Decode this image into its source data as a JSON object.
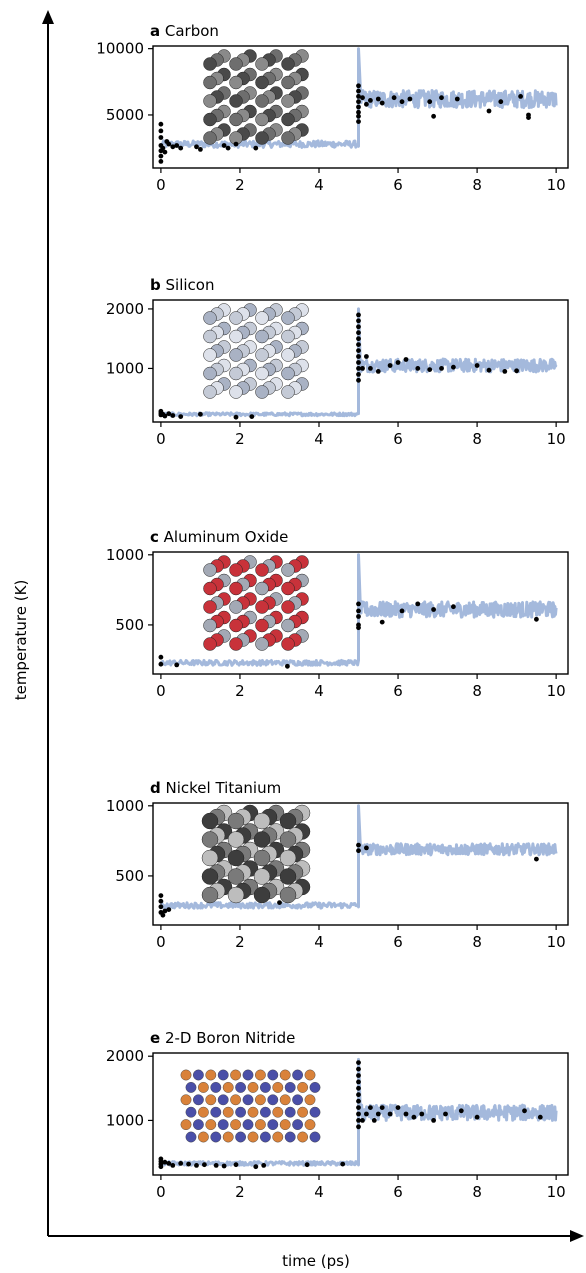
{
  "figure": {
    "xlabel": "time (ps)",
    "ylabel": "temperature (K)"
  },
  "colors": {
    "trace": "#a4b9dc",
    "points": "#000000",
    "axis": "#000000"
  },
  "chart_data": [
    {
      "type": "line",
      "panel_letter": "a",
      "title": "Carbon",
      "xlim": [
        -0.2,
        10.3
      ],
      "ylim": [
        1000,
        10200
      ],
      "xticks": [
        0,
        2,
        4,
        6,
        8,
        10
      ],
      "yticks": [
        5000,
        10000
      ],
      "spike": {
        "x": 5.0,
        "y": 10000
      },
      "series": [
        {
          "segment": "before",
          "x_range": [
            0,
            5
          ],
          "mean": 2800,
          "noise": 250
        },
        {
          "segment": "after",
          "x_range": [
            5.05,
            10
          ],
          "mean": 6200,
          "noise": 650
        }
      ],
      "points": [
        [
          0,
          4300
        ],
        [
          0,
          3800
        ],
        [
          0,
          3300
        ],
        [
          0,
          2700
        ],
        [
          0,
          2300
        ],
        [
          0,
          1900
        ],
        [
          0,
          1500
        ],
        [
          0.05,
          2500
        ],
        [
          0.1,
          2200
        ],
        [
          0.15,
          3000
        ],
        [
          0.2,
          2800
        ],
        [
          0.3,
          2600
        ],
        [
          0.4,
          2700
        ],
        [
          0.5,
          2500
        ],
        [
          0.9,
          2600
        ],
        [
          1,
          2400
        ],
        [
          1.6,
          2700
        ],
        [
          1.7,
          2500
        ],
        [
          1.9,
          2800
        ],
        [
          2.4,
          2500
        ],
        [
          5,
          7200
        ],
        [
          5,
          6800
        ],
        [
          5,
          6400
        ],
        [
          5,
          6000
        ],
        [
          5,
          5600
        ],
        [
          5,
          5200
        ],
        [
          5,
          4900
        ],
        [
          5,
          4500
        ],
        [
          5.1,
          6300
        ],
        [
          5.2,
          5800
        ],
        [
          5.3,
          6100
        ],
        [
          5.5,
          6200
        ],
        [
          5.6,
          5900
        ],
        [
          5.9,
          6300
        ],
        [
          6.1,
          6000
        ],
        [
          6.3,
          6200
        ],
        [
          6.8,
          6000
        ],
        [
          6.9,
          4900
        ],
        [
          7.1,
          6300
        ],
        [
          7.5,
          6200
        ],
        [
          8.3,
          5300
        ],
        [
          8.6,
          6000
        ],
        [
          9.1,
          6400
        ],
        [
          9.3,
          4800
        ],
        [
          9.3,
          5000
        ]
      ],
      "atoms": {
        "kind": "carbon",
        "colors": [
          "#4a4a4a",
          "#6e6e6e",
          "#8a8a8a"
        ]
      }
    },
    {
      "type": "line",
      "panel_letter": "b",
      "title": "Silicon",
      "xlim": [
        -0.2,
        10.3
      ],
      "ylim": [
        100,
        2150
      ],
      "xticks": [
        0,
        2,
        4,
        6,
        8,
        10
      ],
      "yticks": [
        1000,
        2000
      ],
      "spike": {
        "x": 5.0,
        "y": 2000
      },
      "series": [
        {
          "segment": "before",
          "x_range": [
            0,
            5
          ],
          "mean": 230,
          "noise": 25
        },
        {
          "segment": "after",
          "x_range": [
            5.05,
            10
          ],
          "mean": 1050,
          "noise": 110
        }
      ],
      "points": [
        [
          0,
          280
        ],
        [
          0,
          250
        ],
        [
          0,
          220
        ],
        [
          0.05,
          230
        ],
        [
          0.1,
          200
        ],
        [
          0.2,
          240
        ],
        [
          0.3,
          210
        ],
        [
          0.5,
          190
        ],
        [
          1,
          230
        ],
        [
          1.9,
          180
        ],
        [
          2.3,
          190
        ],
        [
          5,
          1900
        ],
        [
          5,
          1800
        ],
        [
          5,
          1700
        ],
        [
          5,
          1600
        ],
        [
          5,
          1500
        ],
        [
          5,
          1400
        ],
        [
          5,
          1300
        ],
        [
          5,
          1200
        ],
        [
          5,
          1100
        ],
        [
          5,
          1000
        ],
        [
          5,
          900
        ],
        [
          5,
          800
        ],
        [
          5.1,
          1000
        ],
        [
          5.2,
          1200
        ],
        [
          5.3,
          1000
        ],
        [
          5.5,
          950
        ],
        [
          5.8,
          1050
        ],
        [
          6,
          1100
        ],
        [
          6.2,
          1150
        ],
        [
          6.5,
          1000
        ],
        [
          6.8,
          980
        ],
        [
          7.1,
          1000
        ],
        [
          7.4,
          1020
        ],
        [
          8,
          1050
        ],
        [
          8.3,
          970
        ],
        [
          8.7,
          950
        ],
        [
          9,
          960
        ]
      ],
      "atoms": {
        "kind": "silicon",
        "colors": [
          "#a9b2c4",
          "#c4cad6",
          "#dde1ea"
        ]
      }
    },
    {
      "type": "line",
      "panel_letter": "c",
      "title": "Aluminum Oxide",
      "xlim": [
        -0.2,
        10.3
      ],
      "ylim": [
        150,
        1020
      ],
      "xticks": [
        0,
        2,
        4,
        6,
        8,
        10
      ],
      "yticks": [
        500,
        1000
      ],
      "spike": {
        "x": 5.0,
        "y": 1000
      },
      "series": [
        {
          "segment": "before",
          "x_range": [
            0,
            5
          ],
          "mean": 230,
          "noise": 18
        },
        {
          "segment": "after",
          "x_range": [
            5.05,
            10
          ],
          "mean": 610,
          "noise": 55
        }
      ],
      "points": [
        [
          0,
          270
        ],
        [
          0,
          220
        ],
        [
          0.4,
          215
        ],
        [
          3.2,
          205
        ],
        [
          5,
          650
        ],
        [
          5,
          600
        ],
        [
          5,
          560
        ],
        [
          5,
          500
        ],
        [
          5,
          480
        ],
        [
          5.6,
          520
        ],
        [
          6.1,
          600
        ],
        [
          6.5,
          650
        ],
        [
          6.9,
          610
        ],
        [
          7.4,
          630
        ],
        [
          9.5,
          540
        ]
      ],
      "atoms": {
        "kind": "aluminum-oxide",
        "colors": [
          "#c8323a",
          "#a3a9b5"
        ]
      }
    },
    {
      "type": "line",
      "panel_letter": "d",
      "title": "Nickel Titanium",
      "xlim": [
        -0.2,
        10.3
      ],
      "ylim": [
        150,
        1020
      ],
      "xticks": [
        0,
        2,
        4,
        6,
        8,
        10
      ],
      "yticks": [
        500,
        1000
      ],
      "spike": {
        "x": 5.0,
        "y": 1000
      },
      "series": [
        {
          "segment": "before",
          "x_range": [
            0,
            5
          ],
          "mean": 290,
          "noise": 20
        },
        {
          "segment": "after",
          "x_range": [
            5.05,
            10
          ],
          "mean": 690,
          "noise": 40
        }
      ],
      "points": [
        [
          0,
          360
        ],
        [
          0,
          320
        ],
        [
          0,
          280
        ],
        [
          0,
          240
        ],
        [
          0.05,
          220
        ],
        [
          0.1,
          250
        ],
        [
          0.2,
          260
        ],
        [
          3,
          310
        ],
        [
          5,
          720
        ],
        [
          5,
          680
        ],
        [
          5.2,
          700
        ],
        [
          9.5,
          620
        ]
      ],
      "atoms": {
        "kind": "nickel-titanium",
        "colors": [
          "#3d3d3d",
          "#7a7a7a",
          "#bdbdbd"
        ]
      }
    },
    {
      "type": "line",
      "panel_letter": "e",
      "title": "2-D Boron Nitride",
      "xlim": [
        -0.2,
        10.3
      ],
      "ylim": [
        150,
        2050
      ],
      "xticks": [
        0,
        2,
        4,
        6,
        8,
        10
      ],
      "yticks": [
        1000,
        2000
      ],
      "spike": {
        "x": 5.0,
        "y": 1950
      },
      "series": [
        {
          "segment": "before",
          "x_range": [
            0,
            5
          ],
          "mean": 330,
          "noise": 30
        },
        {
          "segment": "after",
          "x_range": [
            5.05,
            10
          ],
          "mean": 1120,
          "noise": 120
        }
      ],
      "points": [
        [
          0,
          400
        ],
        [
          0,
          360
        ],
        [
          0,
          320
        ],
        [
          0,
          280
        ],
        [
          0.1,
          350
        ],
        [
          0.2,
          330
        ],
        [
          0.3,
          300
        ],
        [
          0.5,
          330
        ],
        [
          0.7,
          320
        ],
        [
          0.9,
          300
        ],
        [
          1.1,
          310
        ],
        [
          1.4,
          300
        ],
        [
          1.6,
          290
        ],
        [
          1.9,
          310
        ],
        [
          2.4,
          280
        ],
        [
          2.6,
          300
        ],
        [
          3.7,
          310
        ],
        [
          4.6,
          320
        ],
        [
          5,
          1900
        ],
        [
          5,
          1800
        ],
        [
          5,
          1700
        ],
        [
          5,
          1600
        ],
        [
          5,
          1500
        ],
        [
          5,
          1400
        ],
        [
          5,
          1300
        ],
        [
          5,
          1200
        ],
        [
          5,
          1100
        ],
        [
          5,
          1000
        ],
        [
          5,
          900
        ],
        [
          5.1,
          1000
        ],
        [
          5.2,
          1100
        ],
        [
          5.3,
          1200
        ],
        [
          5.4,
          1000
        ],
        [
          5.5,
          1100
        ],
        [
          5.6,
          1200
        ],
        [
          5.8,
          1100
        ],
        [
          6,
          1200
        ],
        [
          6.2,
          1100
        ],
        [
          6.4,
          1050
        ],
        [
          6.6,
          1100
        ],
        [
          6.9,
          1000
        ],
        [
          7.2,
          1100
        ],
        [
          7.6,
          1150
        ],
        [
          8,
          1050
        ],
        [
          9.2,
          1150
        ],
        [
          9.6,
          1050
        ]
      ],
      "atoms": {
        "kind": "boron-nitride",
        "colors": [
          "#d9823a",
          "#4a4fa8"
        ]
      }
    }
  ]
}
